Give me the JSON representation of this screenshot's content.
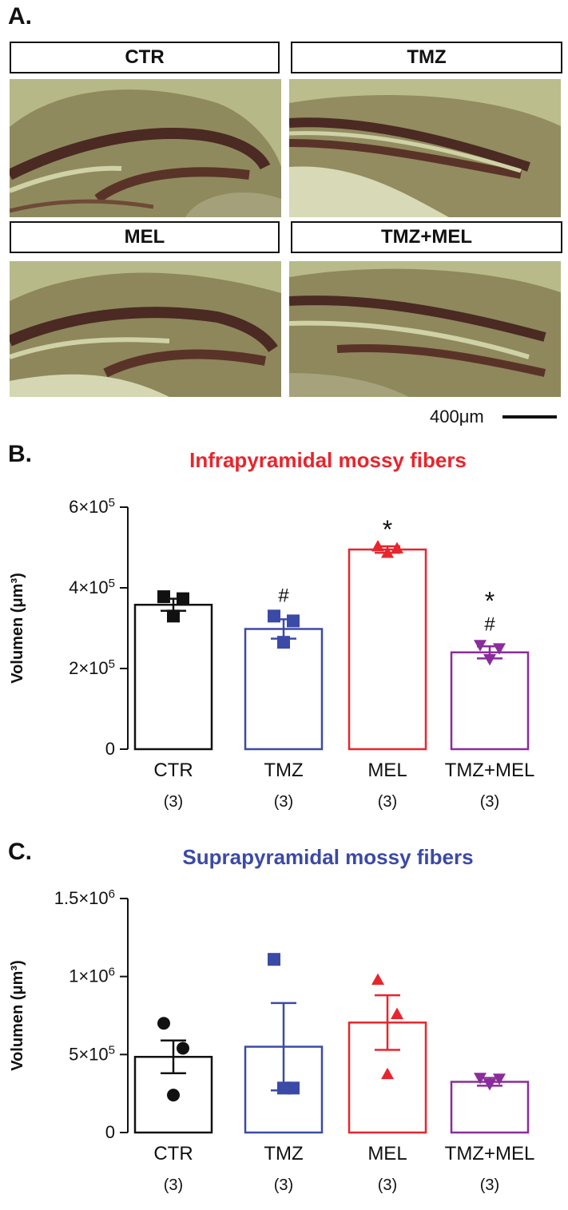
{
  "panel_a": {
    "letter": "A.",
    "groups": [
      {
        "label": "CTR",
        "color": "#111111"
      },
      {
        "label": "TMZ",
        "color": "#3b4aa6"
      },
      {
        "label": "MEL",
        "color": "#e8252d"
      },
      {
        "label": "TMZ+MEL",
        "color": "#8a2c9b"
      }
    ],
    "scale_bar_label": "400μm"
  },
  "panel_b": {
    "letter": "B.",
    "title": "Infrapyramidal mossy fibers",
    "title_color": "#e8252d"
  },
  "panel_c": {
    "letter": "C.",
    "title": "Suprapyramidal mossy fibers",
    "title_color": "#3b4aa6"
  },
  "chart_data": [
    {
      "type": "bar",
      "title": "Infrapyramidal mossy fibers",
      "ylabel": "Volumen (μm³)",
      "ylim": [
        0,
        600000
      ],
      "yticks": [
        0,
        200000,
        400000,
        600000
      ],
      "ytick_labels": [
        {
          "base": "0",
          "exp": ""
        },
        {
          "base": "2×10",
          "exp": "5"
        },
        {
          "base": "4×10",
          "exp": "5"
        },
        {
          "base": "6×10",
          "exp": "5"
        }
      ],
      "categories": [
        "CTR",
        "TMZ",
        "MEL",
        "TMZ+MEL"
      ],
      "n_labels": [
        "(3)",
        "(3)",
        "(3)",
        "(3)"
      ],
      "colors": [
        "#111111",
        "#3b4aa6",
        "#e8252d",
        "#8a2c9b"
      ],
      "markers": [
        "square",
        "square",
        "triangle-up",
        "triangle-down"
      ],
      "values": [
        358000,
        298000,
        495000,
        240000
      ],
      "sem": [
        15000,
        24000,
        8000,
        15000
      ],
      "points": [
        [
          378000,
          373000,
          330000
        ],
        [
          330000,
          318000,
          265000
        ],
        [
          503000,
          498000,
          487000
        ],
        [
          258000,
          250000,
          223000
        ]
      ],
      "annotations": [
        {
          "category": "TMZ",
          "lines": [
            "#"
          ]
        },
        {
          "category": "MEL",
          "lines": [
            "*"
          ]
        },
        {
          "category": "TMZ+MEL",
          "lines": [
            "*",
            "#"
          ]
        }
      ]
    },
    {
      "type": "bar",
      "title": "Suprapyramidal mossy fibers",
      "ylabel": "Volumen (μm³)",
      "ylim": [
        0,
        1500000
      ],
      "yticks": [
        0,
        500000,
        1000000,
        1500000
      ],
      "ytick_labels": [
        {
          "base": "0",
          "exp": ""
        },
        {
          "base": "5×10",
          "exp": "5"
        },
        {
          "base": "1×10",
          "exp": "6"
        },
        {
          "base": "1.5×10",
          "exp": "6"
        }
      ],
      "categories": [
        "CTR",
        "TMZ",
        "MEL",
        "TMZ+MEL"
      ],
      "n_labels": [
        "(3)",
        "(3)",
        "(3)",
        "(3)"
      ],
      "colors": [
        "#111111",
        "#3b4aa6",
        "#e8252d",
        "#8a2c9b"
      ],
      "markers": [
        "circle",
        "square",
        "triangle-up",
        "triangle-down"
      ],
      "values": [
        485000,
        550000,
        705000,
        325000
      ],
      "sem": [
        105000,
        280000,
        175000,
        25000
      ],
      "points": [
        [
          700000,
          540000,
          240000
        ],
        [
          1110000,
          285000,
          285000
        ],
        [
          980000,
          760000,
          375000
        ],
        [
          350000,
          345000,
          310000
        ]
      ],
      "annotations": []
    }
  ]
}
